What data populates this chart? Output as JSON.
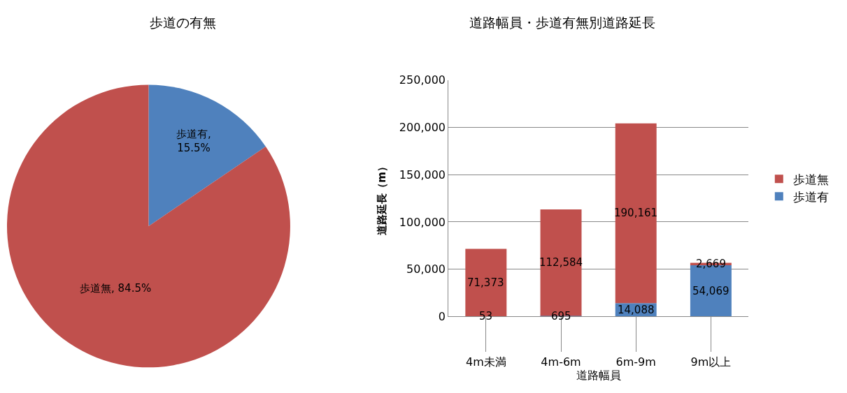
{
  "chart_data": [
    {
      "type": "pie",
      "title": "歩道の有無",
      "categories": [
        "歩道有",
        "歩道無"
      ],
      "values": [
        15.5,
        84.5
      ],
      "colors": [
        "#4f81bd",
        "#c0504d"
      ],
      "value_labels": [
        ",\n15.5%",
        ", 84.5%"
      ]
    },
    {
      "type": "bar",
      "title": "道路幅員・歩道有無別道路延長",
      "xlabel": "道路幅員",
      "ylabel": "道路延長（m）",
      "categories": [
        "4m未満",
        "4m-6m",
        "6m-9m",
        "9m以上"
      ],
      "stacked": true,
      "series": [
        {
          "name": "歩道有",
          "color": "#4f81bd",
          "values": [
            53,
            695,
            14088,
            54069
          ],
          "value_labels": [
            "53",
            "695",
            "14,088",
            "54,069"
          ]
        },
        {
          "name": "歩道無",
          "color": "#c0504d",
          "values": [
            71373,
            112584,
            190161,
            2669
          ],
          "value_labels": [
            "71,373",
            "112,584",
            "190,161",
            "2,669"
          ]
        }
      ],
      "ylim": [
        0,
        250000
      ],
      "yticks": [
        0,
        {
          "value": 50000,
          "label": "50,000"
        },
        {
          "value": 100000,
          "label": "100,000"
        },
        {
          "value": 150000,
          "label": "150,000"
        },
        {
          "value": 200000,
          "label": "200,000"
        },
        {
          "value": 250000,
          "label": "250,000"
        }
      ],
      "grid": "y",
      "legend": "right"
    }
  ]
}
